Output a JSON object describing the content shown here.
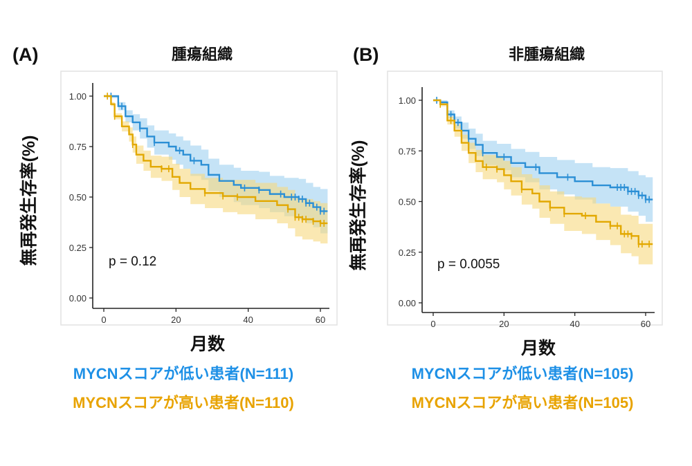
{
  "colors": {
    "low": "#2b8fd5",
    "high": "#e2a800",
    "low_band": "#9fd0f0",
    "high_band": "#f6d97e",
    "legend_low": "#1e90e6",
    "legend_high": "#e8a300"
  },
  "chart_data": [
    {
      "type": "line",
      "panel_label": "(A)",
      "title": "腫瘍組織",
      "xlabel": "月数",
      "ylabel": "無再発生存率(%)",
      "xlim": [
        0,
        62
      ],
      "ylim": [
        0,
        1
      ],
      "xticks": [
        "0",
        "20",
        "40",
        "60"
      ],
      "yticks": [
        "0.00",
        "0.25",
        "0.50",
        "0.75",
        "1.00"
      ],
      "annotation": "p = 0.12",
      "grid": false,
      "series": [
        {
          "name": "MYCNスコアが低い患者(N=111)",
          "key": "low",
          "x": [
            0,
            2,
            4,
            6,
            8,
            10,
            12,
            14,
            18,
            20,
            22,
            24,
            27,
            29,
            32,
            36,
            38,
            43,
            46,
            50,
            54,
            56,
            58,
            60,
            62
          ],
          "y": [
            1,
            1,
            0.95,
            0.9,
            0.87,
            0.84,
            0.8,
            0.77,
            0.75,
            0.73,
            0.71,
            0.68,
            0.66,
            0.61,
            0.58,
            0.56,
            0.545,
            0.535,
            0.515,
            0.5,
            0.49,
            0.47,
            0.45,
            0.43,
            0.43
          ],
          "ci_upper": [
            1,
            1,
            0.97,
            0.93,
            0.91,
            0.89,
            0.855,
            0.83,
            0.815,
            0.8,
            0.78,
            0.755,
            0.735,
            0.69,
            0.66,
            0.645,
            0.63,
            0.625,
            0.605,
            0.595,
            0.59,
            0.57,
            0.55,
            0.54,
            0.54
          ],
          "ci_lower": [
            1,
            0.99,
            0.93,
            0.87,
            0.83,
            0.79,
            0.745,
            0.71,
            0.685,
            0.66,
            0.64,
            0.605,
            0.585,
            0.53,
            0.5,
            0.475,
            0.46,
            0.445,
            0.425,
            0.405,
            0.39,
            0.37,
            0.35,
            0.32,
            0.32
          ],
          "censored": [
            2,
            5,
            10,
            14,
            21,
            25,
            39,
            43,
            49,
            52,
            53,
            54,
            55,
            56,
            57,
            59,
            60,
            61
          ]
        },
        {
          "name": "MYCNスコアが高い患者(N=110)",
          "key": "high",
          "x": [
            0,
            2,
            3,
            5,
            7,
            8,
            9,
            11,
            13,
            16,
            19,
            21,
            24,
            28,
            33,
            37,
            42,
            48,
            51,
            53,
            55,
            58,
            60,
            62
          ],
          "y": [
            1,
            0.96,
            0.9,
            0.85,
            0.81,
            0.76,
            0.71,
            0.68,
            0.65,
            0.64,
            0.6,
            0.57,
            0.54,
            0.52,
            0.505,
            0.5,
            0.48,
            0.46,
            0.44,
            0.4,
            0.39,
            0.38,
            0.37,
            0.37
          ],
          "ci_upper": [
            1,
            0.97,
            0.915,
            0.875,
            0.845,
            0.8,
            0.755,
            0.73,
            0.705,
            0.7,
            0.665,
            0.64,
            0.615,
            0.595,
            0.585,
            0.585,
            0.57,
            0.55,
            0.535,
            0.495,
            0.49,
            0.48,
            0.47,
            0.47
          ],
          "ci_lower": [
            1,
            0.95,
            0.885,
            0.825,
            0.775,
            0.72,
            0.665,
            0.63,
            0.595,
            0.58,
            0.535,
            0.5,
            0.465,
            0.445,
            0.425,
            0.415,
            0.39,
            0.37,
            0.345,
            0.305,
            0.29,
            0.28,
            0.27,
            0.27
          ],
          "censored": [
            1,
            3,
            8,
            16,
            18,
            28,
            33,
            37,
            51,
            53,
            54,
            55,
            56,
            58,
            60,
            61
          ]
        }
      ]
    },
    {
      "type": "line",
      "panel_label": "(B)",
      "title": "非腫瘍組織",
      "xlabel": "月数",
      "ylabel": "無再発生存率(%)",
      "xlim": [
        0,
        62
      ],
      "ylim": [
        0,
        1
      ],
      "xticks": [
        "0",
        "20",
        "40",
        "60"
      ],
      "yticks": [
        "0.00",
        "0.25",
        "0.50",
        "0.75",
        "1.00"
      ],
      "annotation": "p = 0.0055",
      "grid": false,
      "series": [
        {
          "name": "MYCNスコアが低い患者(N=105)",
          "key": "low",
          "x": [
            0,
            2,
            4,
            6,
            8,
            10,
            12,
            14,
            18,
            22,
            26,
            30,
            35,
            40,
            45,
            50,
            55,
            58,
            60,
            62
          ],
          "y": [
            1,
            0.99,
            0.93,
            0.89,
            0.85,
            0.81,
            0.78,
            0.74,
            0.72,
            0.69,
            0.67,
            0.64,
            0.62,
            0.6,
            0.58,
            0.57,
            0.55,
            0.53,
            0.51,
            0.51
          ],
          "ci_upper": [
            1,
            1,
            0.95,
            0.92,
            0.89,
            0.86,
            0.835,
            0.8,
            0.785,
            0.76,
            0.745,
            0.72,
            0.705,
            0.69,
            0.67,
            0.665,
            0.65,
            0.63,
            0.62,
            0.62
          ],
          "ci_lower": [
            1,
            0.98,
            0.91,
            0.86,
            0.81,
            0.76,
            0.725,
            0.68,
            0.655,
            0.62,
            0.595,
            0.56,
            0.535,
            0.51,
            0.49,
            0.475,
            0.45,
            0.43,
            0.4,
            0.4
          ],
          "censored": [
            1,
            5,
            7,
            10,
            14,
            20,
            29,
            38,
            52,
            53,
            54,
            55,
            56,
            57,
            58,
            59,
            60,
            61
          ]
        },
        {
          "name": "MYCNスコアが高い患者(N=105)",
          "key": "high",
          "x": [
            0,
            2,
            4,
            6,
            8,
            10,
            12,
            14,
            18,
            20,
            22,
            25,
            28,
            30,
            33,
            37,
            42,
            46,
            50,
            53,
            56,
            58,
            62
          ],
          "y": [
            1,
            0.98,
            0.9,
            0.85,
            0.79,
            0.74,
            0.7,
            0.67,
            0.66,
            0.63,
            0.6,
            0.56,
            0.54,
            0.5,
            0.47,
            0.44,
            0.43,
            0.4,
            0.38,
            0.34,
            0.33,
            0.29,
            0.29
          ],
          "ci_upper": [
            1,
            0.99,
            0.92,
            0.88,
            0.83,
            0.79,
            0.755,
            0.73,
            0.725,
            0.7,
            0.67,
            0.635,
            0.615,
            0.58,
            0.55,
            0.525,
            0.52,
            0.49,
            0.475,
            0.435,
            0.43,
            0.39,
            0.39
          ],
          "ci_lower": [
            1,
            0.97,
            0.88,
            0.82,
            0.75,
            0.69,
            0.645,
            0.61,
            0.595,
            0.56,
            0.53,
            0.485,
            0.465,
            0.42,
            0.39,
            0.355,
            0.34,
            0.31,
            0.285,
            0.245,
            0.23,
            0.19,
            0.19
          ],
          "censored": [
            2,
            5,
            15,
            18,
            25,
            33,
            37,
            43,
            50,
            52,
            54,
            55,
            56,
            58,
            59,
            61
          ]
        }
      ]
    }
  ]
}
